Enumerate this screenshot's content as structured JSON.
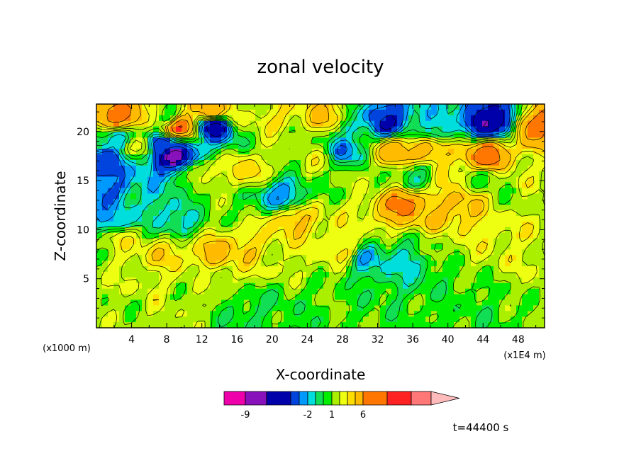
{
  "chart_data": {
    "type": "heatmap",
    "title": "zonal velocity",
    "xlabel": "X-coordinate",
    "ylabel": "Z-coordinate",
    "x_unit": "(x1E4 m)",
    "y_unit": "(x1000 m)",
    "xlim": [
      0,
      51
    ],
    "ylim": [
      0,
      22.8
    ],
    "x_ticks": [
      4,
      8,
      12,
      16,
      20,
      24,
      28,
      32,
      36,
      40,
      44,
      48
    ],
    "y_ticks": [
      5,
      10,
      15,
      20
    ],
    "time_label": "t=44400 s",
    "colorbar": {
      "levels": [
        -11,
        -9,
        -7,
        -5,
        -3,
        -2,
        -1,
        0,
        1,
        2,
        3,
        4,
        6,
        8,
        10,
        12
      ],
      "labels": [
        {
          "text": "-9",
          "value": -9
        },
        {
          "text": "-2",
          "value": -2
        },
        {
          "text": "1",
          "value": 1
        },
        {
          "text": "6",
          "value": 6
        }
      ],
      "colors": [
        "#ee00aa",
        "#8811bb",
        "#0000aa",
        "#0044dd",
        "#0099ff",
        "#00dddd",
        "#11dd55",
        "#00ee00",
        "#aaee00",
        "#eeff11",
        "#ffdd00",
        "#ffbb00",
        "#ff7700",
        "#ff2222",
        "#ff7777"
      ],
      "extend_color": "#ffbbbb"
    },
    "features": [
      {
        "x": 38,
        "y": 8,
        "value": 1.5
      },
      {
        "x": 22,
        "y": 2,
        "value": 0.5
      },
      {
        "x": 42,
        "y": 1.5,
        "value": 0.5
      },
      {
        "x": 2,
        "y": 2,
        "value": 1.5
      },
      {
        "x": 6,
        "y": 5,
        "value": 2
      },
      {
        "x": 12,
        "y": 5,
        "value": 1.5
      },
      {
        "x": 7.5,
        "y": 7.5,
        "value": 3.5
      },
      {
        "x": 13.5,
        "y": 7.5,
        "value": 4.5
      },
      {
        "x": 17.5,
        "y": 8,
        "value": 3.5
      },
      {
        "x": 20,
        "y": 7,
        "value": 2
      },
      {
        "x": 3,
        "y": 9,
        "value": 2.5
      },
      {
        "x": 2,
        "y": 11,
        "value": -2
      },
      {
        "x": 9,
        "y": 11,
        "value": -1.5
      },
      {
        "x": 5,
        "y": 13.5,
        "value": -1
      },
      {
        "x": 2,
        "y": 14,
        "value": -3
      },
      {
        "x": 12,
        "y": 16,
        "value": 2.5
      },
      {
        "x": 17,
        "y": 16,
        "value": 3.5
      },
      {
        "x": 21,
        "y": 13.5,
        "value": -2.5
      },
      {
        "x": 22.5,
        "y": 11,
        "value": 4
      },
      {
        "x": 22,
        "y": 19,
        "value": 1.5
      },
      {
        "x": 28.5,
        "y": 18,
        "value": -2.5
      },
      {
        "x": 31,
        "y": 15,
        "value": 1.5
      },
      {
        "x": 28,
        "y": 8,
        "value": 3
      },
      {
        "x": 35,
        "y": 12.5,
        "value": 6.5
      },
      {
        "x": 38,
        "y": 11.5,
        "value": 4
      },
      {
        "x": 41.5,
        "y": 12.5,
        "value": 4.5
      },
      {
        "x": 46,
        "y": 10,
        "value": 2.5
      },
      {
        "x": 36,
        "y": 7,
        "value": -1.5
      },
      {
        "x": 31,
        "y": 7,
        "value": -1.5
      },
      {
        "x": 44.5,
        "y": 17.5,
        "value": 7
      },
      {
        "x": 40,
        "y": 15.5,
        "value": 3
      },
      {
        "x": 37.5,
        "y": 18,
        "value": 5
      },
      {
        "x": 33.5,
        "y": 18,
        "value": 5
      },
      {
        "x": 36.5,
        "y": 15.5,
        "value": -0.5
      },
      {
        "x": 29.5,
        "y": 20,
        "value": -1
      },
      {
        "x": 33,
        "y": 21,
        "value": -5
      },
      {
        "x": 39,
        "y": 20.5,
        "value": -1.5
      },
      {
        "x": 45,
        "y": 21,
        "value": -7
      },
      {
        "x": 44,
        "y": 15,
        "value": 0.8
      },
      {
        "x": 50,
        "y": 20.5,
        "value": 6.5
      },
      {
        "x": 49.5,
        "y": 16,
        "value": 2
      },
      {
        "x": 2.5,
        "y": 21.5,
        "value": 7
      },
      {
        "x": 8,
        "y": 21.5,
        "value": 1
      },
      {
        "x": 9.5,
        "y": 20.5,
        "value": 7.5
      },
      {
        "x": 13,
        "y": 22,
        "value": 5.5
      },
      {
        "x": 16,
        "y": 21.5,
        "value": 2
      },
      {
        "x": 13.5,
        "y": 20.5,
        "value": -6.5
      },
      {
        "x": 7.5,
        "y": 18.5,
        "value": -4
      },
      {
        "x": 9,
        "y": 17.5,
        "value": -8
      },
      {
        "x": 5,
        "y": 18.5,
        "value": 2
      },
      {
        "x": 2,
        "y": 19,
        "value": -1.5
      },
      {
        "x": 1,
        "y": 17,
        "value": -4
      },
      {
        "x": 20,
        "y": 21,
        "value": 3
      },
      {
        "x": 26,
        "y": 21.5,
        "value": 4
      },
      {
        "x": 25,
        "y": 17,
        "value": 2
      },
      {
        "x": 47,
        "y": 13,
        "value": 1.5
      },
      {
        "x": 14,
        "y": 12.5,
        "value": 1
      },
      {
        "x": 18,
        "y": 2,
        "value": 0
      }
    ]
  }
}
